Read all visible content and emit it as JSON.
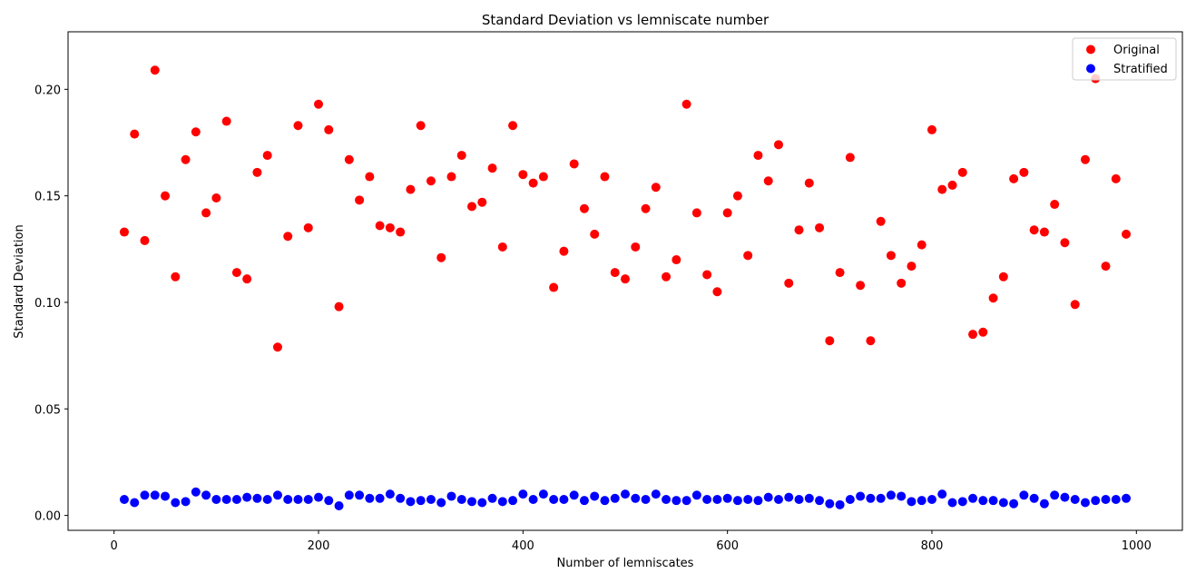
{
  "chart_data": {
    "type": "scatter",
    "title": "Standard Deviation vs lemniscate number",
    "xlabel": "Number of lemniscates",
    "ylabel": "Standard Deviation",
    "xlim": [
      -45,
      1045
    ],
    "ylim": [
      -0.007,
      0.227
    ],
    "xticks": [
      0,
      200,
      400,
      600,
      800,
      1000
    ],
    "xtick_labels": [
      "0",
      "200",
      "400",
      "600",
      "800",
      "1000"
    ],
    "yticks": [
      0.0,
      0.05,
      0.1,
      0.15,
      0.2
    ],
    "ytick_labels": [
      "0.00",
      "0.05",
      "0.10",
      "0.15",
      "0.20"
    ],
    "grid": false,
    "legend_position": "top-right",
    "x": [
      10,
      20,
      30,
      40,
      50,
      60,
      70,
      80,
      90,
      100,
      110,
      120,
      130,
      140,
      150,
      160,
      170,
      180,
      190,
      200,
      210,
      220,
      230,
      240,
      250,
      260,
      270,
      280,
      290,
      300,
      310,
      320,
      330,
      340,
      350,
      360,
      370,
      380,
      390,
      400,
      410,
      420,
      430,
      440,
      450,
      460,
      470,
      480,
      490,
      500,
      510,
      520,
      530,
      540,
      550,
      560,
      570,
      580,
      590,
      600,
      610,
      620,
      630,
      640,
      650,
      660,
      670,
      680,
      690,
      700,
      710,
      720,
      730,
      740,
      750,
      760,
      770,
      780,
      790,
      800,
      810,
      820,
      830,
      840,
      850,
      860,
      870,
      880,
      890,
      900,
      910,
      920,
      930,
      940,
      950,
      960,
      970,
      980,
      990
    ],
    "series": [
      {
        "name": "Original",
        "color": "#ff0000",
        "values": [
          0.133,
          0.179,
          0.129,
          0.209,
          0.15,
          0.112,
          0.167,
          0.18,
          0.142,
          0.149,
          0.185,
          0.114,
          0.111,
          0.161,
          0.169,
          0.079,
          0.131,
          0.183,
          0.135,
          0.193,
          0.181,
          0.098,
          0.167,
          0.148,
          0.159,
          0.136,
          0.135,
          0.133,
          0.153,
          0.183,
          0.157,
          0.121,
          0.159,
          0.169,
          0.145,
          0.147,
          0.163,
          0.126,
          0.183,
          0.16,
          0.156,
          0.159,
          0.107,
          0.124,
          0.165,
          0.144,
          0.132,
          0.159,
          0.114,
          0.111,
          0.126,
          0.144,
          0.154,
          0.112,
          0.12,
          0.193,
          0.142,
          0.113,
          0.105,
          0.142,
          0.15,
          0.122,
          0.169,
          0.157,
          0.174,
          0.109,
          0.134,
          0.156,
          0.135,
          0.082,
          0.114,
          0.168,
          0.108,
          0.082,
          0.138,
          0.122,
          0.109,
          0.117,
          0.127,
          0.181,
          0.153,
          0.155,
          0.161,
          0.085,
          0.086,
          0.102,
          0.112,
          0.158,
          0.161,
          0.134,
          0.133,
          0.146,
          0.128,
          0.099,
          0.167,
          0.205,
          0.117,
          0.158,
          0.132
        ]
      },
      {
        "name": "Stratified",
        "color": "#0000ff",
        "values": [
          0.0075,
          0.006,
          0.0095,
          0.0095,
          0.009,
          0.006,
          0.0065,
          0.011,
          0.0095,
          0.0075,
          0.0075,
          0.0075,
          0.0085,
          0.008,
          0.0075,
          0.0095,
          0.0075,
          0.0075,
          0.0075,
          0.0085,
          0.007,
          0.0045,
          0.0095,
          0.0095,
          0.008,
          0.008,
          0.01,
          0.008,
          0.0065,
          0.007,
          0.0075,
          0.006,
          0.009,
          0.0075,
          0.0065,
          0.006,
          0.008,
          0.0065,
          0.007,
          0.01,
          0.0075,
          0.01,
          0.0075,
          0.0075,
          0.0095,
          0.007,
          0.009,
          0.007,
          0.008,
          0.01,
          0.008,
          0.0075,
          0.01,
          0.0075,
          0.007,
          0.007,
          0.0095,
          0.0075,
          0.0075,
          0.008,
          0.007,
          0.0075,
          0.007,
          0.0085,
          0.0075,
          0.0085,
          0.0075,
          0.008,
          0.007,
          0.0055,
          0.005,
          0.0075,
          0.009,
          0.008,
          0.008,
          0.0095,
          0.009,
          0.0065,
          0.007,
          0.0075,
          0.01,
          0.006,
          0.0065,
          0.008,
          0.007,
          0.007,
          0.006,
          0.0055,
          0.0095,
          0.008,
          0.0055,
          0.0095,
          0.0085,
          0.0075,
          0.006,
          0.007,
          0.0075,
          0.0075,
          0.008
        ]
      }
    ]
  }
}
